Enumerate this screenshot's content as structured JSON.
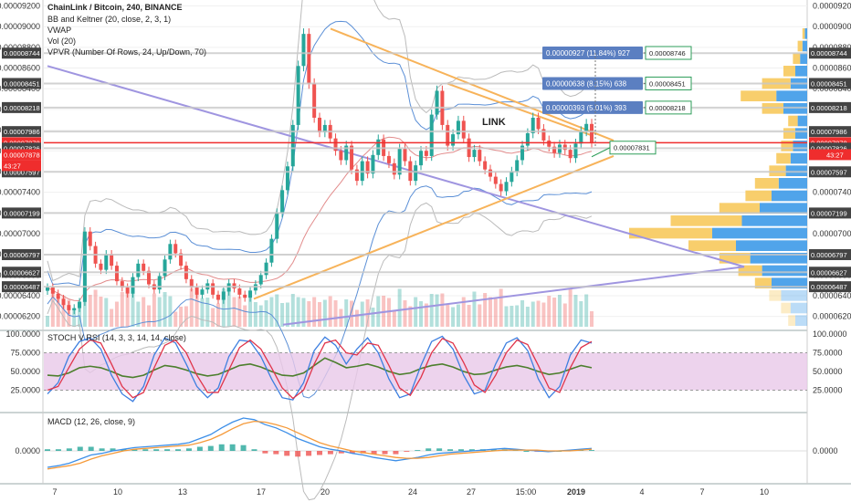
{
  "header": {
    "title": "ChainLink / Bitcoin, 240, BINANCE",
    "indicators": [
      "BB and Keltner (20, close, 2, 3, 1)",
      "VWAP",
      "Vol (20)",
      "VPVR (Number Of Rows, 24, Up/Down, 70)"
    ],
    "chart_label": "LINK"
  },
  "timer": "43:27",
  "colors": {
    "up": "#26a69a",
    "down": "#ef5350",
    "trend_orange": "#f7b35a",
    "trend_purple": "#9f95e0",
    "bb": "#5b8fd6",
    "price_line": "#ef2d2d",
    "vp_up": "#3d9ae8",
    "vp_down": "#f7c95c",
    "stoch_k": "#3d7fe0",
    "stoch_d": "#e0344a",
    "rsi": "#4d7f2e",
    "stoch_band": "#e9c8e9",
    "macd_line": "#3d8fe8",
    "macd_signal": "#f59a3a"
  },
  "chart_data": [
    {
      "type": "candlestick",
      "name": "ChainLink / Bitcoin",
      "x_labels": [
        "7",
        "10",
        "13",
        "17",
        "20",
        "24",
        "27",
        "15:00",
        "2019",
        "4",
        "7",
        "10"
      ],
      "y_axis_labels": [
        "0.00009200",
        "0.00009000",
        "0.00008800",
        "0.00008600",
        "0.00008400",
        "0.00008200",
        "0.00008000",
        "0.00007800",
        "0.00007600",
        "0.00007400",
        "0.00007200",
        "0.00007000",
        "0.00006800",
        "0.00006600",
        "0.00006400",
        "0.00006200"
      ],
      "ylim": [
        6.1e-05,
        9.24e-05
      ],
      "price_tags": [
        {
          "value": "0.00008744",
          "y": 8.744e-05,
          "color": "#444"
        },
        {
          "value": "0.00008451",
          "y": 8.451e-05,
          "color": "#444"
        },
        {
          "value": "0.00008218",
          "y": 8.218e-05,
          "color": "#444"
        },
        {
          "value": "0.00007986",
          "y": 7.986e-05,
          "color": "#444"
        },
        {
          "value": "0.00007878",
          "y": 7.878e-05,
          "color": "#ef2d2d"
        },
        {
          "value": "0.00007826",
          "y": 7.826e-05,
          "color": "#444"
        },
        {
          "value": "0.00007597",
          "y": 7.597e-05,
          "color": "#444"
        },
        {
          "value": "0.00007199",
          "y": 7.199e-05,
          "color": "#444"
        },
        {
          "value": "0.00006797",
          "y": 6.797e-05,
          "color": "#444"
        },
        {
          "value": "0.00006627",
          "y": 6.627e-05,
          "color": "#444"
        },
        {
          "value": "0.00006487",
          "y": 6.487e-05,
          "color": "#444"
        }
      ],
      "current_price": 7.878e-05,
      "current_price_label": "0.00007878",
      "callouts": [
        {
          "text": "0.00007831",
          "y": 7.831e-05
        },
        {
          "text": "0.00008218",
          "y": 8.218e-05
        },
        {
          "text": "0.00008451",
          "y": 8.451e-05
        },
        {
          "text": "0.00008746",
          "y": 8.746e-05
        }
      ],
      "measures": [
        {
          "text": "0.00000393 (5.01%) 393",
          "y": 8.218e-05
        },
        {
          "text": "0.00000638 (8.15%) 638",
          "y": 8.451e-05
        },
        {
          "text": "0.00000927 (11.84%) 927",
          "y": 8.746e-05
        }
      ],
      "closes": [
        6.48e-05,
        6.42e-05,
        6.37e-05,
        6.31e-05,
        6.26e-05,
        6.28e-05,
        6.34e-05,
        7.02e-05,
        6.88e-05,
        6.71e-05,
        6.65e-05,
        6.8e-05,
        6.69e-05,
        6.54e-05,
        6.48e-05,
        6.42e-05,
        6.58e-05,
        6.71e-05,
        6.64e-05,
        6.51e-05,
        6.46e-05,
        6.59e-05,
        6.75e-05,
        6.9e-05,
        6.81e-05,
        6.69e-05,
        6.56e-05,
        6.48e-05,
        6.41e-05,
        6.46e-05,
        6.52e-05,
        6.41e-05,
        6.36e-05,
        6.44e-05,
        6.52e-05,
        6.47e-05,
        6.41e-05,
        6.38e-05,
        6.45e-05,
        6.51e-05,
        6.6e-05,
        6.72e-05,
        6.95e-05,
        7.2e-05,
        7.42e-05,
        7.65e-05,
        8.05e-05,
        8.62e-05,
        8.93e-05,
        8.45e-05,
        8.12e-05,
        7.98e-05,
        8.05e-05,
        7.92e-05,
        7.8e-05,
        7.71e-05,
        7.85e-05,
        7.62e-05,
        7.51e-05,
        7.7e-05,
        7.58e-05,
        7.76e-05,
        7.91e-05,
        7.75e-05,
        7.68e-05,
        7.57e-05,
        7.82e-05,
        7.7e-05,
        7.51e-05,
        7.66e-05,
        7.8e-05,
        7.75e-05,
        8.15e-05,
        8.38e-05,
        8.05e-05,
        7.85e-05,
        7.96e-05,
        8.09e-05,
        7.92e-05,
        7.74e-05,
        7.81e-05,
        7.7e-05,
        7.62e-05,
        7.55e-05,
        7.48e-05,
        7.41e-05,
        7.5e-05,
        7.6e-05,
        7.71e-05,
        7.85e-05,
        7.97e-05,
        8.12e-05,
        8.01e-05,
        7.9e-05,
        7.84e-05,
        7.78e-05,
        7.86e-05,
        7.81e-05,
        7.73e-05,
        7.87e-05,
        7.99e-05,
        8.06e-05,
        7.88e-05
      ]
    },
    {
      "type": "line",
      "name": "STOCH V RSI (14, 3, 3, 14, 14, close)",
      "y_axis_labels": [
        "100.0000",
        "75.0000",
        "50.0000",
        "25.0000"
      ],
      "ylim": [
        0,
        100
      ],
      "band": [
        25,
        75
      ],
      "k": [
        20,
        35,
        70,
        90,
        95,
        80,
        45,
        20,
        10,
        30,
        72,
        95,
        88,
        60,
        30,
        15,
        28,
        70,
        92,
        90,
        70,
        40,
        15,
        12,
        35,
        78,
        96,
        85,
        60,
        80,
        95,
        75,
        40,
        15,
        20,
        58,
        90,
        97,
        80,
        45,
        20,
        25,
        60,
        88,
        95,
        78,
        40,
        15,
        30,
        72,
        92,
        88
      ],
      "d": [
        25,
        30,
        55,
        80,
        92,
        88,
        60,
        30,
        15,
        22,
        55,
        85,
        92,
        75,
        45,
        22,
        22,
        52,
        82,
        92,
        80,
        55,
        28,
        14,
        25,
        60,
        88,
        92,
        75,
        72,
        88,
        85,
        58,
        28,
        18,
        42,
        75,
        94,
        88,
        62,
        32,
        22,
        45,
        75,
        92,
        86,
        58,
        28,
        22,
        55,
        82,
        90
      ],
      "rsi": [
        45,
        44,
        48,
        55,
        57,
        55,
        50,
        44,
        42,
        45,
        52,
        58,
        56,
        52,
        47,
        44,
        46,
        52,
        58,
        60,
        56,
        50,
        45,
        44,
        48,
        58,
        68,
        62,
        55,
        57,
        60,
        56,
        50,
        46,
        48,
        54,
        58,
        60,
        56,
        50,
        46,
        47,
        52,
        56,
        58,
        55,
        50,
        46,
        48,
        53,
        58,
        55
      ]
    },
    {
      "type": "histogram",
      "name": "MACD (12, 26, close, 9)",
      "y_axis_labels": [
        "0.0000"
      ],
      "macd": [
        -20,
        -18,
        -15,
        -10,
        -5,
        -3,
        0,
        2,
        4,
        5,
        6,
        7,
        8,
        10,
        15,
        20,
        28,
        35,
        40,
        38,
        32,
        28,
        22,
        15,
        10,
        5,
        2,
        0,
        -3,
        -5,
        -8,
        -10,
        -12,
        -10,
        -8,
        -5,
        -3,
        -2,
        -1,
        0,
        1,
        2,
        3,
        2,
        1,
        0,
        -1,
        0,
        1,
        2,
        3
      ],
      "signal": [
        -22,
        -20,
        -18,
        -15,
        -10,
        -6,
        -3,
        0,
        2,
        3,
        4,
        5,
        6,
        7,
        10,
        14,
        20,
        27,
        33,
        36,
        35,
        32,
        28,
        22,
        16,
        10,
        6,
        3,
        0,
        -2,
        -4,
        -6,
        -8,
        -9,
        -9,
        -8,
        -6,
        -4,
        -3,
        -2,
        -1,
        0,
        1,
        1,
        1,
        1,
        0,
        0,
        0,
        1,
        2
      ],
      "hist": [
        2,
        2,
        3,
        5,
        5,
        3,
        3,
        2,
        2,
        2,
        2,
        2,
        2,
        3,
        5,
        6,
        8,
        8,
        7,
        2,
        -3,
        -4,
        -6,
        -7,
        -6,
        -5,
        -4,
        -3,
        -3,
        -3,
        -4,
        -4,
        -4,
        -1,
        1,
        3,
        3,
        2,
        2,
        2,
        2,
        2,
        2,
        1,
        0,
        -1,
        -1,
        0,
        1,
        1,
        1
      ]
    }
  ],
  "macd_legend": "MACD (12, 26, close, 9)",
  "stoch_legend": "STOCH V RSI (14, 3, 3, 14, 14, close)"
}
